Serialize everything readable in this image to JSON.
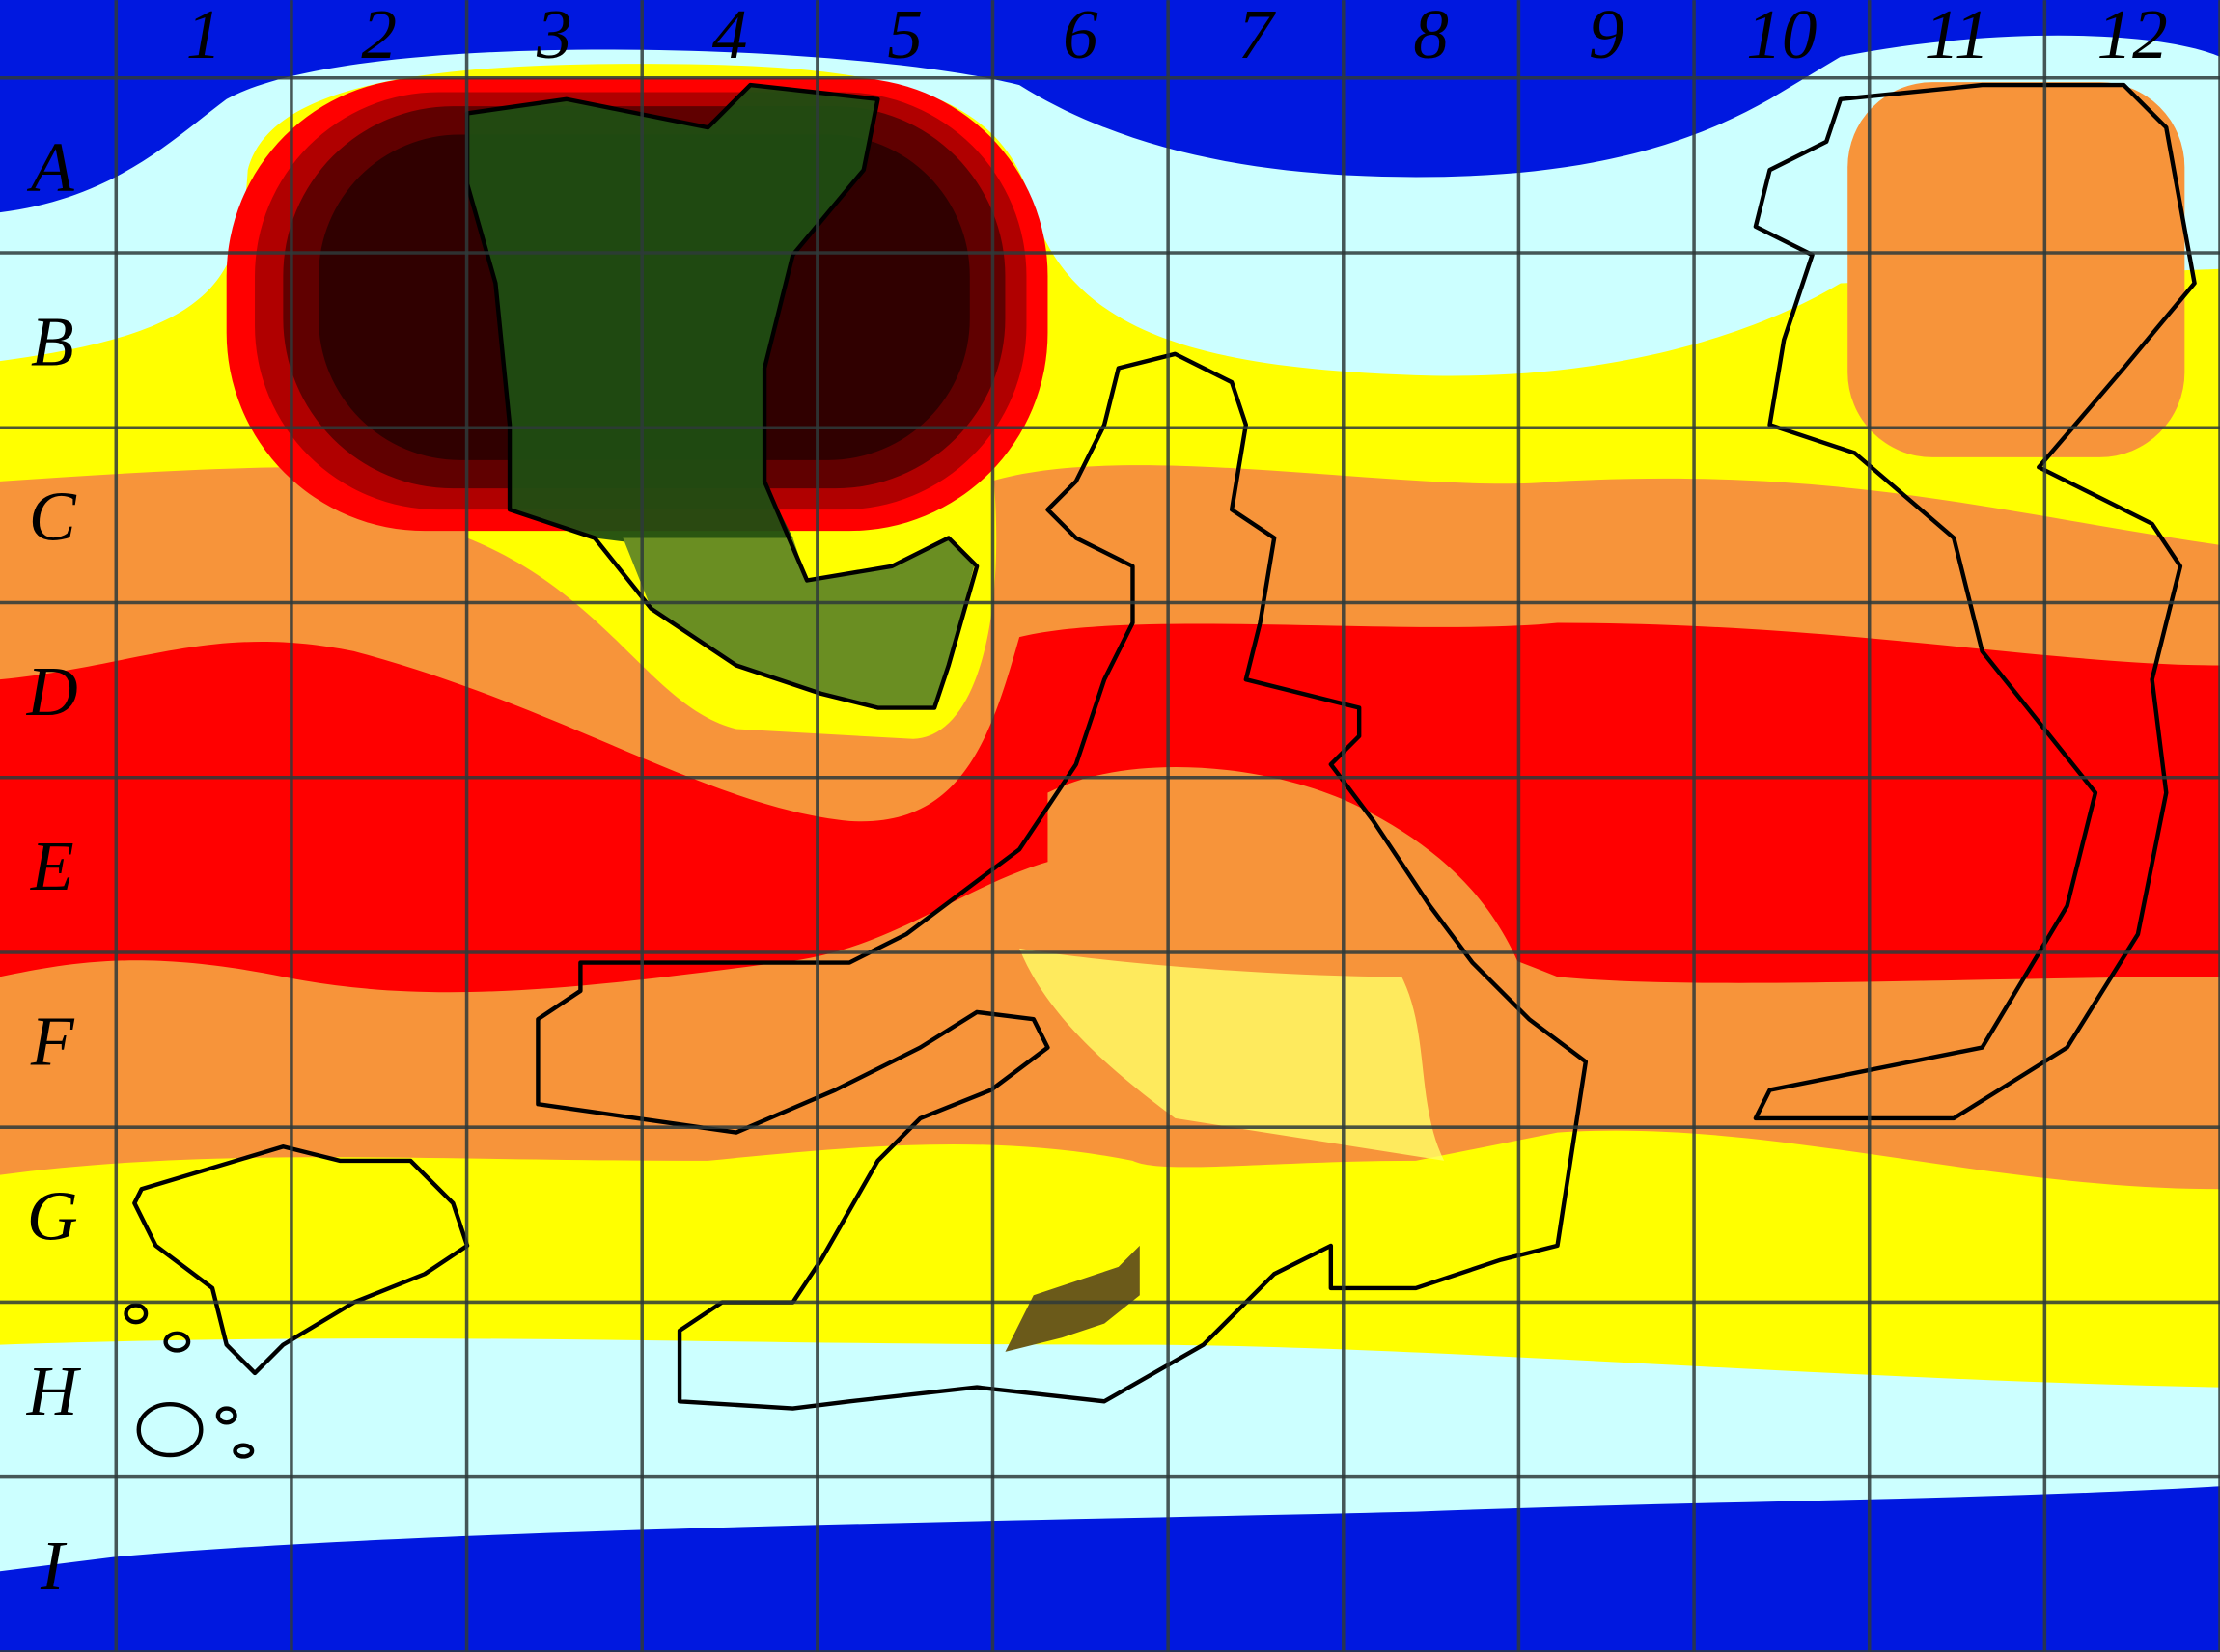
{
  "column_labels": [
    "1",
    "2",
    "3",
    "4",
    "5",
    "6",
    "7",
    "8",
    "9",
    "10",
    "11",
    "12"
  ],
  "row_labels": [
    "A",
    "B",
    "C",
    "D",
    "E",
    "F",
    "G",
    "H",
    "I"
  ]
}
